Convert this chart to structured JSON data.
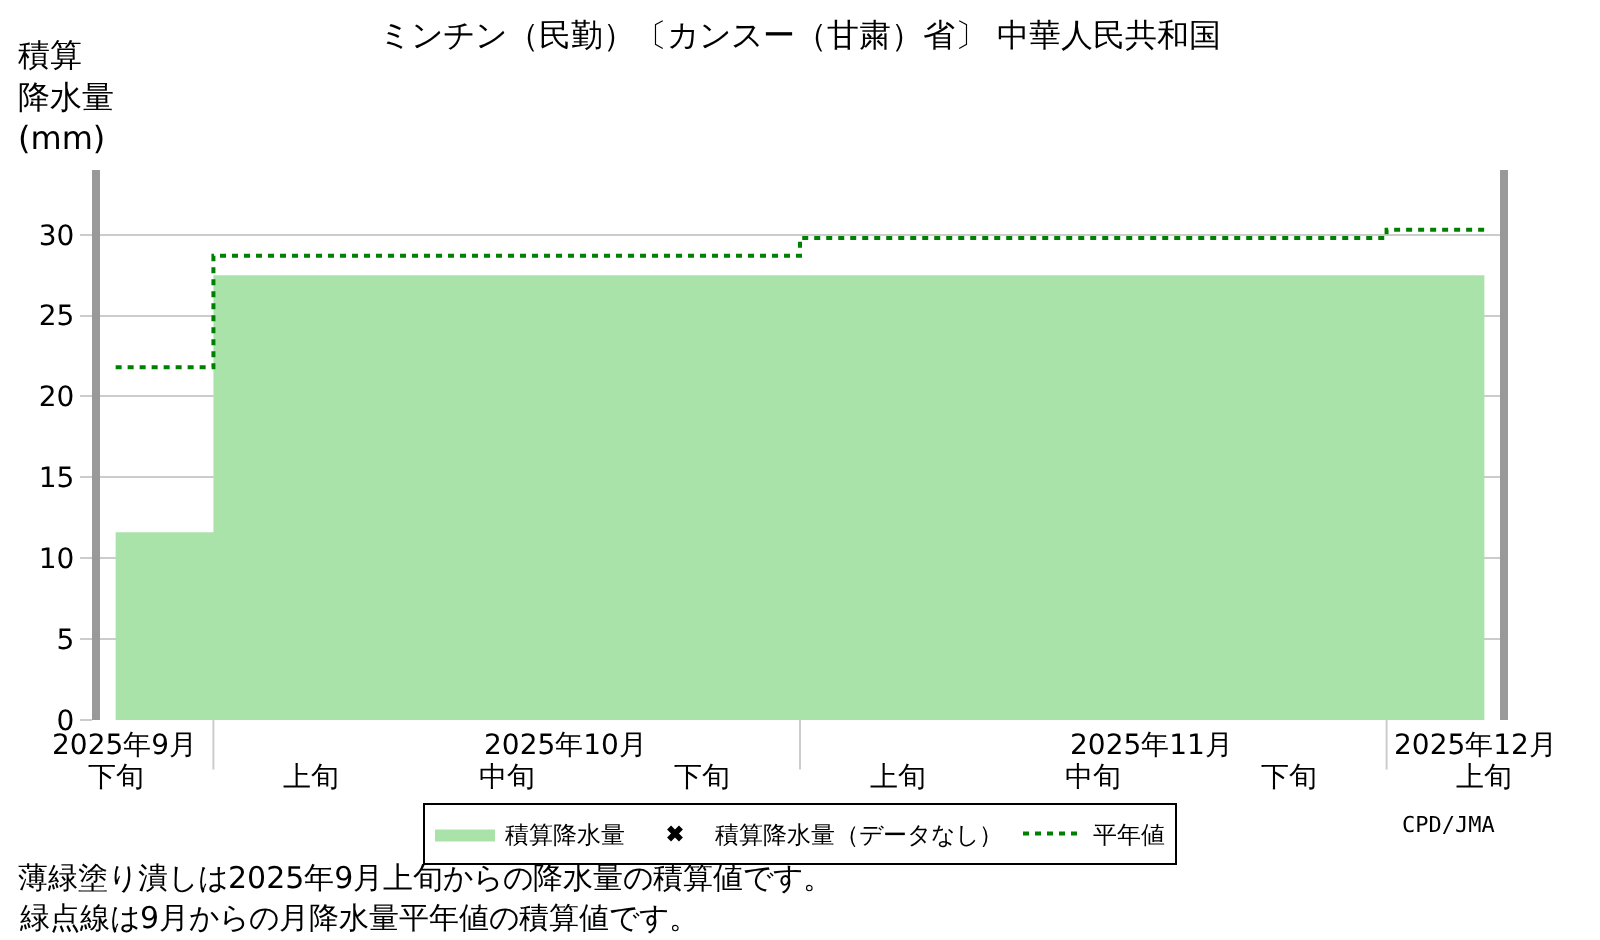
{
  "chart_data": {
    "type": "area",
    "title": "ミンチン（民勤）〔カンスー（甘粛）省〕 中華人民共和国",
    "ylabel": "積算降水量(mm)",
    "categories": [
      "下旬",
      "上旬",
      "中旬",
      "下旬",
      "上旬",
      "中旬",
      "下旬",
      "上旬"
    ],
    "series": [
      {
        "name": "積算降水量",
        "color": "#aae3aa",
        "values": [
          11.6,
          27.5,
          27.5,
          27.5,
          27.5,
          27.5,
          27.5,
          27.5
        ]
      },
      {
        "name": "積算降水量（データなし）",
        "type": "scatter",
        "marker": "cross",
        "color": "#000000",
        "values": [
          null,
          null,
          null,
          null,
          null,
          null,
          null,
          null
        ]
      },
      {
        "name": "平年値",
        "type": "step",
        "color": "#008000",
        "line_style": "dotted",
        "values": [
          21.8,
          28.7,
          28.7,
          28.7,
          29.8,
          29.8,
          29.8,
          30.3
        ]
      }
    ],
    "ylim": [
      0,
      34
    ],
    "yticks": [
      0,
      5,
      10,
      15,
      20,
      25,
      30
    ],
    "grid": "y",
    "legend": "bottom",
    "annotations": [
      "2025年9月",
      "2025年10月",
      "2025年11月",
      "2025年12月",
      "CPD/JMA",
      "薄緑塗り潰しは2025年9月上旬からの降水量の積算値です。",
      "緑点線は9月からの月降水量平年値の積算値です。"
    ]
  }
}
